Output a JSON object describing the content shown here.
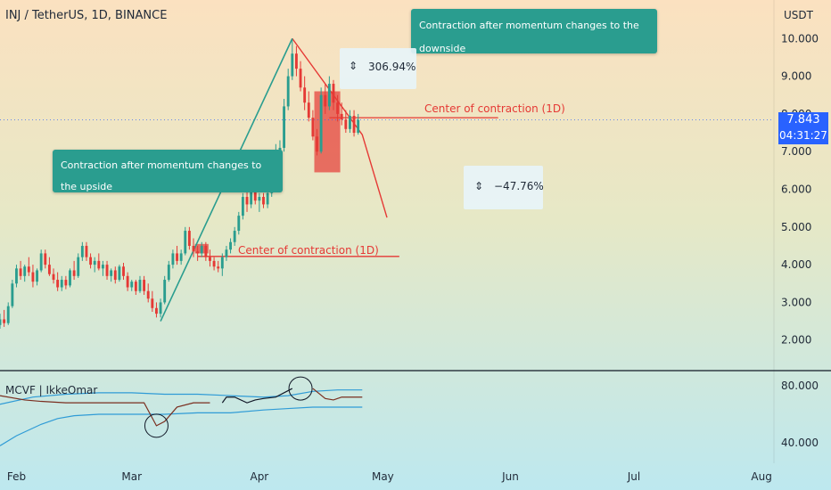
{
  "header": {
    "title": "INJ / TetherUS, 1D, BINANCE",
    "currency": "USDT"
  },
  "indicator": {
    "label": "MCVF | IkkeOmar"
  },
  "annotations": {
    "tooltip_up": "Contraction after momentum changes to the upside",
    "tooltip_down": "Contraction after momentum changes to the downside",
    "center_upper": "Center of contraction (1D)",
    "center_lower": "Center of contraction (1D)",
    "measure_up": "306.94%",
    "measure_down": "−47.76%"
  },
  "price_tag": {
    "price": "7.843",
    "countdown": "04:31:27"
  },
  "colors": {
    "up": "#2a9d8f",
    "down": "#e53935",
    "tag": "#2962ff",
    "bg_top": "#fbe1c0",
    "bg_bottom": "#bde8ef"
  },
  "chart_data": {
    "type": "candlestick",
    "title": "INJ / TetherUS, 1D, BINANCE",
    "y_ticks": [
      "10.000",
      "9.000",
      "8.000",
      "7.000",
      "6.000",
      "5.000",
      "4.000",
      "3.000",
      "2.000"
    ],
    "ylim": [
      1.45,
      10.55
    ],
    "x_ticks": [
      "Feb",
      "Mar",
      "Apr",
      "May",
      "Jun",
      "Jul",
      "Aug"
    ],
    "x_tick_days": [
      0,
      28,
      59,
      89,
      120,
      150,
      181
    ],
    "xlim": [
      -4,
      184
    ],
    "osc_ticks": [
      "80.000",
      "40.000"
    ],
    "osc_ylim": [
      32,
      88
    ],
    "candles": [
      {
        "d": -4,
        "o": 2.4,
        "h": 2.7,
        "l": 2.3,
        "c": 2.55
      },
      {
        "d": -3,
        "o": 2.55,
        "h": 2.8,
        "l": 2.35,
        "c": 2.45
      },
      {
        "d": -2,
        "o": 2.45,
        "h": 3.0,
        "l": 2.4,
        "c": 2.9
      },
      {
        "d": -1,
        "o": 2.9,
        "h": 3.6,
        "l": 2.85,
        "c": 3.5
      },
      {
        "d": 0,
        "o": 3.5,
        "h": 4.0,
        "l": 3.4,
        "c": 3.9
      },
      {
        "d": 1,
        "o": 3.9,
        "h": 4.1,
        "l": 3.6,
        "c": 3.7
      },
      {
        "d": 2,
        "o": 3.7,
        "h": 4.0,
        "l": 3.55,
        "c": 3.95
      },
      {
        "d": 3,
        "o": 3.95,
        "h": 4.2,
        "l": 3.7,
        "c": 3.8
      },
      {
        "d": 4,
        "o": 3.8,
        "h": 4.0,
        "l": 3.4,
        "c": 3.55
      },
      {
        "d": 5,
        "o": 3.55,
        "h": 3.9,
        "l": 3.45,
        "c": 3.85
      },
      {
        "d": 6,
        "o": 3.85,
        "h": 4.4,
        "l": 3.8,
        "c": 4.3
      },
      {
        "d": 7,
        "o": 4.3,
        "h": 4.4,
        "l": 3.9,
        "c": 4.0
      },
      {
        "d": 8,
        "o": 4.0,
        "h": 4.2,
        "l": 3.7,
        "c": 3.75
      },
      {
        "d": 9,
        "o": 3.75,
        "h": 3.9,
        "l": 3.5,
        "c": 3.6
      },
      {
        "d": 10,
        "o": 3.6,
        "h": 3.8,
        "l": 3.3,
        "c": 3.4
      },
      {
        "d": 11,
        "o": 3.4,
        "h": 3.7,
        "l": 3.3,
        "c": 3.6
      },
      {
        "d": 12,
        "o": 3.6,
        "h": 3.7,
        "l": 3.35,
        "c": 3.45
      },
      {
        "d": 13,
        "o": 3.45,
        "h": 3.9,
        "l": 3.4,
        "c": 3.85
      },
      {
        "d": 14,
        "o": 3.85,
        "h": 4.1,
        "l": 3.6,
        "c": 3.7
      },
      {
        "d": 15,
        "o": 3.7,
        "h": 4.3,
        "l": 3.65,
        "c": 4.2
      },
      {
        "d": 16,
        "o": 4.2,
        "h": 4.6,
        "l": 4.1,
        "c": 4.5
      },
      {
        "d": 17,
        "o": 4.5,
        "h": 4.6,
        "l": 4.1,
        "c": 4.2
      },
      {
        "d": 18,
        "o": 4.2,
        "h": 4.3,
        "l": 3.9,
        "c": 4.0
      },
      {
        "d": 19,
        "o": 4.0,
        "h": 4.2,
        "l": 3.8,
        "c": 4.1
      },
      {
        "d": 20,
        "o": 4.1,
        "h": 4.3,
        "l": 3.85,
        "c": 3.9
      },
      {
        "d": 21,
        "o": 3.9,
        "h": 4.1,
        "l": 3.7,
        "c": 4.0
      },
      {
        "d": 22,
        "o": 4.0,
        "h": 4.1,
        "l": 3.6,
        "c": 3.7
      },
      {
        "d": 23,
        "o": 3.7,
        "h": 3.9,
        "l": 3.55,
        "c": 3.85
      },
      {
        "d": 24,
        "o": 3.85,
        "h": 3.95,
        "l": 3.5,
        "c": 3.6
      },
      {
        "d": 25,
        "o": 3.6,
        "h": 4.0,
        "l": 3.55,
        "c": 3.95
      },
      {
        "d": 26,
        "o": 3.95,
        "h": 4.05,
        "l": 3.6,
        "c": 3.7
      },
      {
        "d": 27,
        "o": 3.7,
        "h": 3.8,
        "l": 3.3,
        "c": 3.4
      },
      {
        "d": 28,
        "o": 3.4,
        "h": 3.6,
        "l": 3.3,
        "c": 3.55
      },
      {
        "d": 29,
        "o": 3.55,
        "h": 3.6,
        "l": 3.2,
        "c": 3.3
      },
      {
        "d": 30,
        "o": 3.3,
        "h": 3.7,
        "l": 3.25,
        "c": 3.6
      },
      {
        "d": 31,
        "o": 3.6,
        "h": 3.7,
        "l": 3.2,
        "c": 3.3
      },
      {
        "d": 32,
        "o": 3.3,
        "h": 3.5,
        "l": 3.0,
        "c": 3.1
      },
      {
        "d": 33,
        "o": 3.1,
        "h": 3.3,
        "l": 2.75,
        "c": 2.85
      },
      {
        "d": 34,
        "o": 2.85,
        "h": 3.0,
        "l": 2.6,
        "c": 2.7
      },
      {
        "d": 35,
        "o": 2.7,
        "h": 3.1,
        "l": 2.6,
        "c": 3.0
      },
      {
        "d": 36,
        "o": 3.0,
        "h": 3.7,
        "l": 2.95,
        "c": 3.6
      },
      {
        "d": 37,
        "o": 3.6,
        "h": 4.1,
        "l": 3.55,
        "c": 4.0
      },
      {
        "d": 38,
        "o": 4.0,
        "h": 4.4,
        "l": 3.9,
        "c": 4.3
      },
      {
        "d": 39,
        "o": 4.3,
        "h": 4.5,
        "l": 4.0,
        "c": 4.1
      },
      {
        "d": 40,
        "o": 4.1,
        "h": 4.4,
        "l": 4.0,
        "c": 4.3
      },
      {
        "d": 41,
        "o": 4.3,
        "h": 5.0,
        "l": 4.25,
        "c": 4.9
      },
      {
        "d": 42,
        "o": 4.9,
        "h": 5.0,
        "l": 4.4,
        "c": 4.5
      },
      {
        "d": 43,
        "o": 4.5,
        "h": 4.7,
        "l": 4.2,
        "c": 4.35
      },
      {
        "d": 44,
        "o": 4.35,
        "h": 4.5,
        "l": 4.1,
        "c": 4.3
      },
      {
        "d": 45,
        "o": 4.3,
        "h": 4.6,
        "l": 4.2,
        "c": 4.5
      },
      {
        "d": 46,
        "o": 4.5,
        "h": 4.6,
        "l": 4.1,
        "c": 4.2
      },
      {
        "d": 47,
        "o": 4.2,
        "h": 4.4,
        "l": 3.95,
        "c": 4.1
      },
      {
        "d": 48,
        "o": 4.1,
        "h": 4.2,
        "l": 3.85,
        "c": 3.95
      },
      {
        "d": 49,
        "o": 3.95,
        "h": 4.1,
        "l": 3.8,
        "c": 3.9
      },
      {
        "d": 50,
        "o": 3.9,
        "h": 4.3,
        "l": 3.7,
        "c": 4.2
      },
      {
        "d": 51,
        "o": 4.2,
        "h": 4.5,
        "l": 4.1,
        "c": 4.4
      },
      {
        "d": 52,
        "o": 4.4,
        "h": 4.7,
        "l": 4.3,
        "c": 4.6
      },
      {
        "d": 53,
        "o": 4.6,
        "h": 5.0,
        "l": 4.5,
        "c": 4.9
      },
      {
        "d": 54,
        "o": 4.9,
        "h": 5.4,
        "l": 4.8,
        "c": 5.3
      },
      {
        "d": 55,
        "o": 5.3,
        "h": 5.9,
        "l": 5.2,
        "c": 5.8
      },
      {
        "d": 56,
        "o": 5.8,
        "h": 6.1,
        "l": 5.4,
        "c": 5.6
      },
      {
        "d": 57,
        "o": 5.6,
        "h": 6.2,
        "l": 5.5,
        "c": 6.0
      },
      {
        "d": 58,
        "o": 6.0,
        "h": 6.1,
        "l": 5.6,
        "c": 5.7
      },
      {
        "d": 59,
        "o": 5.7,
        "h": 5.9,
        "l": 5.4,
        "c": 5.8
      },
      {
        "d": 60,
        "o": 5.8,
        "h": 5.9,
        "l": 5.5,
        "c": 5.6
      },
      {
        "d": 61,
        "o": 5.6,
        "h": 6.0,
        "l": 5.5,
        "c": 5.9
      },
      {
        "d": 62,
        "o": 5.9,
        "h": 6.6,
        "l": 5.8,
        "c": 6.5
      },
      {
        "d": 63,
        "o": 6.5,
        "h": 7.2,
        "l": 6.4,
        "c": 7.0
      },
      {
        "d": 64,
        "o": 7.0,
        "h": 7.3,
        "l": 6.8,
        "c": 7.1
      },
      {
        "d": 65,
        "o": 7.1,
        "h": 8.4,
        "l": 7.0,
        "c": 8.2
      },
      {
        "d": 66,
        "o": 8.2,
        "h": 9.2,
        "l": 8.1,
        "c": 9.0
      },
      {
        "d": 67,
        "o": 9.0,
        "h": 10.0,
        "l": 8.9,
        "c": 9.6
      },
      {
        "d": 68,
        "o": 9.6,
        "h": 9.8,
        "l": 9.0,
        "c": 9.2
      },
      {
        "d": 69,
        "o": 9.2,
        "h": 9.4,
        "l": 8.6,
        "c": 8.7
      },
      {
        "d": 70,
        "o": 8.7,
        "h": 9.0,
        "l": 8.1,
        "c": 8.3
      },
      {
        "d": 71,
        "o": 8.3,
        "h": 8.6,
        "l": 7.8,
        "c": 7.9
      },
      {
        "d": 72,
        "o": 7.9,
        "h": 8.1,
        "l": 7.3,
        "c": 7.4
      },
      {
        "d": 73,
        "o": 7.4,
        "h": 7.6,
        "l": 6.9,
        "c": 7.0
      },
      {
        "d": 74,
        "o": 7.0,
        "h": 8.7,
        "l": 6.95,
        "c": 8.5
      },
      {
        "d": 75,
        "o": 8.5,
        "h": 8.8,
        "l": 8.0,
        "c": 8.2
      },
      {
        "d": 76,
        "o": 8.2,
        "h": 9.0,
        "l": 8.1,
        "c": 8.8
      },
      {
        "d": 77,
        "o": 8.8,
        "h": 8.9,
        "l": 8.1,
        "c": 8.3
      },
      {
        "d": 78,
        "o": 8.3,
        "h": 8.5,
        "l": 7.8,
        "c": 8.0
      },
      {
        "d": 79,
        "o": 8.0,
        "h": 8.3,
        "l": 7.7,
        "c": 7.85
      },
      {
        "d": 80,
        "o": 7.85,
        "h": 8.1,
        "l": 7.5,
        "c": 7.6
      },
      {
        "d": 81,
        "o": 7.6,
        "h": 8.1,
        "l": 7.5,
        "c": 7.95
      },
      {
        "d": 82,
        "o": 7.95,
        "h": 8.1,
        "l": 7.4,
        "c": 7.5
      },
      {
        "d": 83,
        "o": 7.5,
        "h": 8.0,
        "l": 7.45,
        "c": 7.843
      }
    ],
    "osc": {
      "upper": [
        [
          -4,
          67
        ],
        [
          4,
          72
        ],
        [
          12,
          74
        ],
        [
          20,
          75
        ],
        [
          28,
          75
        ],
        [
          36,
          74
        ],
        [
          44,
          74
        ],
        [
          52,
          73
        ],
        [
          60,
          72
        ],
        [
          66,
          73
        ],
        [
          72,
          76
        ],
        [
          78,
          77
        ],
        [
          84,
          77
        ]
      ],
      "lower": [
        [
          -4,
          38
        ],
        [
          0,
          45
        ],
        [
          6,
          53
        ],
        [
          10,
          57
        ],
        [
          14,
          59
        ],
        [
          20,
          60
        ],
        [
          28,
          60
        ],
        [
          36,
          60
        ],
        [
          44,
          61
        ],
        [
          52,
          61
        ],
        [
          60,
          63
        ],
        [
          66,
          64
        ],
        [
          72,
          65
        ],
        [
          78,
          65
        ],
        [
          84,
          65
        ]
      ],
      "main": [
        [
          -4,
          73
        ],
        [
          2,
          70
        ],
        [
          6,
          69
        ],
        [
          12,
          68
        ],
        [
          20,
          68
        ],
        [
          28,
          68
        ],
        [
          31,
          68
        ],
        [
          34,
          52
        ],
        [
          36,
          55
        ],
        [
          39,
          65
        ],
        [
          43,
          68
        ],
        [
          47,
          68
        ],
        [
          50,
          68
        ],
        [
          51,
          72
        ],
        [
          53,
          72
        ],
        [
          56,
          68
        ],
        [
          58,
          70
        ],
        [
          60,
          71
        ],
        [
          63,
          72
        ],
        [
          67,
          78
        ],
        [
          72,
          78
        ],
        [
          75,
          71
        ],
        [
          77,
          70
        ],
        [
          79,
          72
        ],
        [
          84,
          72
        ]
      ]
    },
    "trend": {
      "up": [
        [
          35,
          2.5
        ],
        [
          67,
          10.0
        ]
      ],
      "down": [
        [
          67,
          10.0
        ],
        [
          84,
          7.45
        ],
        [
          90,
          5.25
        ]
      ]
    },
    "zones": [
      {
        "d0": 44,
        "d1": 46,
        "y0": 4.3,
        "y1": 4.55
      },
      {
        "d0": 73,
        "d1": 78,
        "y0": 6.45,
        "y1": 8.6
      }
    ],
    "center_lines": [
      {
        "d0": 44,
        "d1": 93,
        "y": 4.22
      },
      {
        "d0": 76,
        "d1": 117,
        "y": 7.9
      }
    ]
  }
}
